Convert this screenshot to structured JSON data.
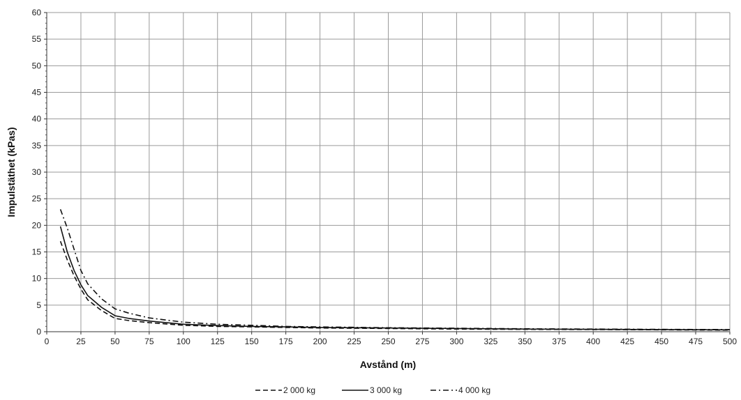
{
  "chart_data": {
    "type": "line",
    "xlabel": "Avstånd (m)",
    "ylabel": "Impulstäthet (kPas)",
    "xlim": [
      0,
      500
    ],
    "ylim": [
      0,
      60
    ],
    "xticks": [
      0,
      25,
      50,
      75,
      100,
      125,
      150,
      175,
      200,
      225,
      250,
      275,
      300,
      325,
      350,
      375,
      400,
      425,
      450,
      475,
      500
    ],
    "yticks": [
      0,
      5,
      10,
      15,
      20,
      25,
      30,
      35,
      40,
      45,
      50,
      55,
      60
    ],
    "grid": true,
    "legend_position": "bottom",
    "series": [
      {
        "name": "2 000 kg",
        "dash": "dashed",
        "x": [
          10,
          15,
          20,
          25,
          30,
          40,
          50,
          60,
          75,
          100,
          125,
          150,
          175,
          200,
          250,
          300,
          350,
          400,
          450,
          500
        ],
        "values": [
          17,
          13.5,
          10.5,
          8,
          6,
          4,
          2.5,
          2.1,
          1.7,
          1.2,
          1.0,
          0.9,
          0.8,
          0.7,
          0.6,
          0.5,
          0.45,
          0.4,
          0.35,
          0.3
        ]
      },
      {
        "name": "3 000 kg",
        "dash": "solid",
        "x": [
          10,
          15,
          20,
          25,
          30,
          40,
          50,
          60,
          75,
          100,
          125,
          150,
          175,
          200,
          250,
          300,
          350,
          400,
          450,
          500
        ],
        "values": [
          19.8,
          15,
          11.5,
          8.8,
          6.8,
          4.6,
          3.0,
          2.5,
          2.0,
          1.4,
          1.15,
          1.0,
          0.9,
          0.8,
          0.7,
          0.6,
          0.5,
          0.45,
          0.4,
          0.35
        ]
      },
      {
        "name": "4 000 kg",
        "dash": "dashdot",
        "x": [
          10,
          15,
          20,
          25,
          30,
          40,
          50,
          60,
          75,
          100,
          125,
          150,
          175,
          200,
          250,
          300,
          350,
          400,
          450,
          500
        ],
        "values": [
          23,
          19.5,
          15.5,
          11.5,
          9,
          6.2,
          4.3,
          3.5,
          2.6,
          1.8,
          1.4,
          1.2,
          1.0,
          0.9,
          0.75,
          0.65,
          0.55,
          0.5,
          0.45,
          0.4
        ]
      }
    ]
  }
}
